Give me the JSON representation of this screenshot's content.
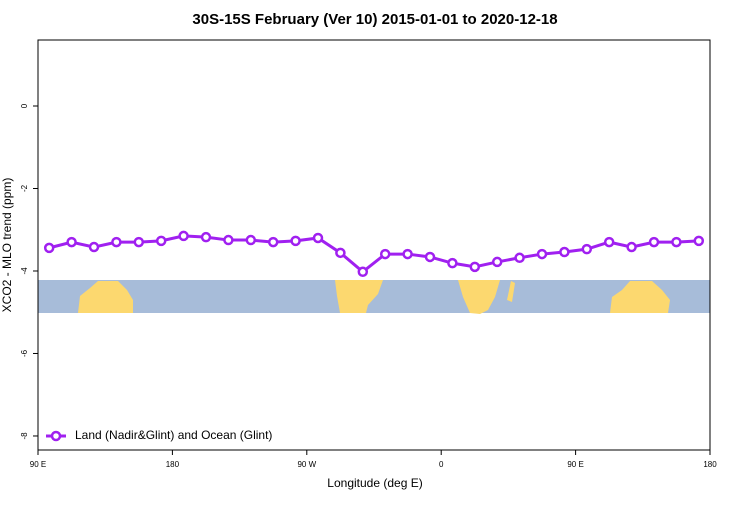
{
  "chart_data": {
    "type": "line",
    "title": "30S-15S February (Ver 10)   2015-01-01 to 2020-12-18",
    "x_label": "Longitude (deg E)",
    "y_label": "XCO2 - MLO trend (ppm)",
    "x": [
      97.5,
      112.5,
      127.5,
      142.5,
      157.5,
      172.5,
      187.5,
      202.5,
      217.5,
      232.5,
      247.5,
      262.5,
      277.5,
      292.5,
      307.5,
      322.5,
      337.5,
      352.5,
      367.5,
      382.5,
      397.5,
      412.5,
      427.5,
      442.5,
      457.5,
      472.5,
      487.5,
      502.5,
      517.5,
      532.5
    ],
    "series": [
      {
        "name": "Land (Nadir&Glint) and Ocean (Glint)",
        "color": "#a020f0",
        "values": [
          -3.44,
          -3.3,
          -3.42,
          -3.3,
          -3.3,
          -3.27,
          -3.15,
          -3.18,
          -3.25,
          -3.25,
          -3.3,
          -3.27,
          -3.2,
          -3.56,
          -4.02,
          -3.59,
          -3.59,
          -3.66,
          -3.81,
          -3.9,
          -3.78,
          -3.68,
          -3.59,
          -3.54,
          -3.47,
          -3.3,
          -3.42,
          -3.3,
          -3.3,
          -3.27
        ]
      }
    ],
    "xlim": [
      90,
      540
    ],
    "xticks": [
      {
        "value": 90,
        "label": "90 E"
      },
      {
        "value": 180,
        "label": "180"
      },
      {
        "value": 270,
        "label": "90 W"
      },
      {
        "value": 360,
        "label": "0"
      },
      {
        "value": 450,
        "label": "90 E"
      },
      {
        "value": 540,
        "label": "180"
      }
    ],
    "ylim": [
      -8.34,
      1.6
    ],
    "yticks": [
      -8,
      -6,
      -4,
      -2,
      0
    ],
    "legend": "bottom-left"
  }
}
